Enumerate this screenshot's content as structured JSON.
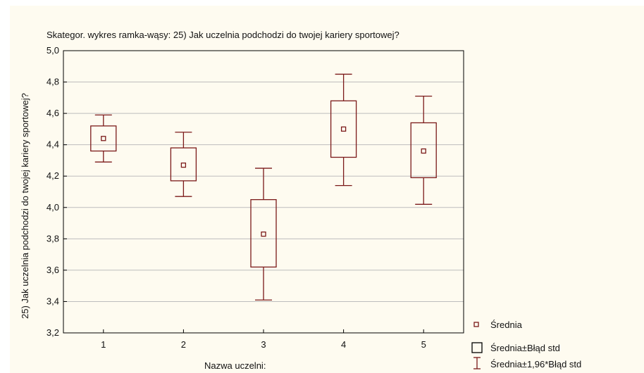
{
  "chart_data": {
    "type": "box",
    "title": "Skategor. wykres ramka-wąsy: 25) Jak uczelnia podchodzi do twojej kariery sportowej?",
    "xlabel": "Nazwa uczelni:",
    "ylabel": "25) Jak uczelnia podchodzi do twojej kariery sportowej?",
    "ylim": [
      3.2,
      5.0
    ],
    "yticks": [
      "3,2",
      "3,4",
      "3,6",
      "3,8",
      "4,0",
      "4,2",
      "4,4",
      "4,6",
      "4,8",
      "5,0"
    ],
    "grid": true,
    "categories": [
      "1",
      "2",
      "3",
      "4",
      "5"
    ],
    "mean": [
      4.44,
      4.27,
      3.83,
      4.5,
      4.36
    ],
    "box_low": [
      4.36,
      4.17,
      3.62,
      4.32,
      4.19
    ],
    "box_high": [
      4.52,
      4.38,
      4.05,
      4.68,
      4.54
    ],
    "whisker_low": [
      4.29,
      4.07,
      3.41,
      4.14,
      4.02
    ],
    "whisker_high": [
      4.59,
      4.48,
      4.25,
      4.85,
      4.71
    ],
    "legend": [
      "Średnia",
      "Średnia±Błąd std",
      "Średnia±1,96*Błąd std"
    ],
    "legend_position": "bottom-right",
    "color": "#7b1a1a"
  }
}
